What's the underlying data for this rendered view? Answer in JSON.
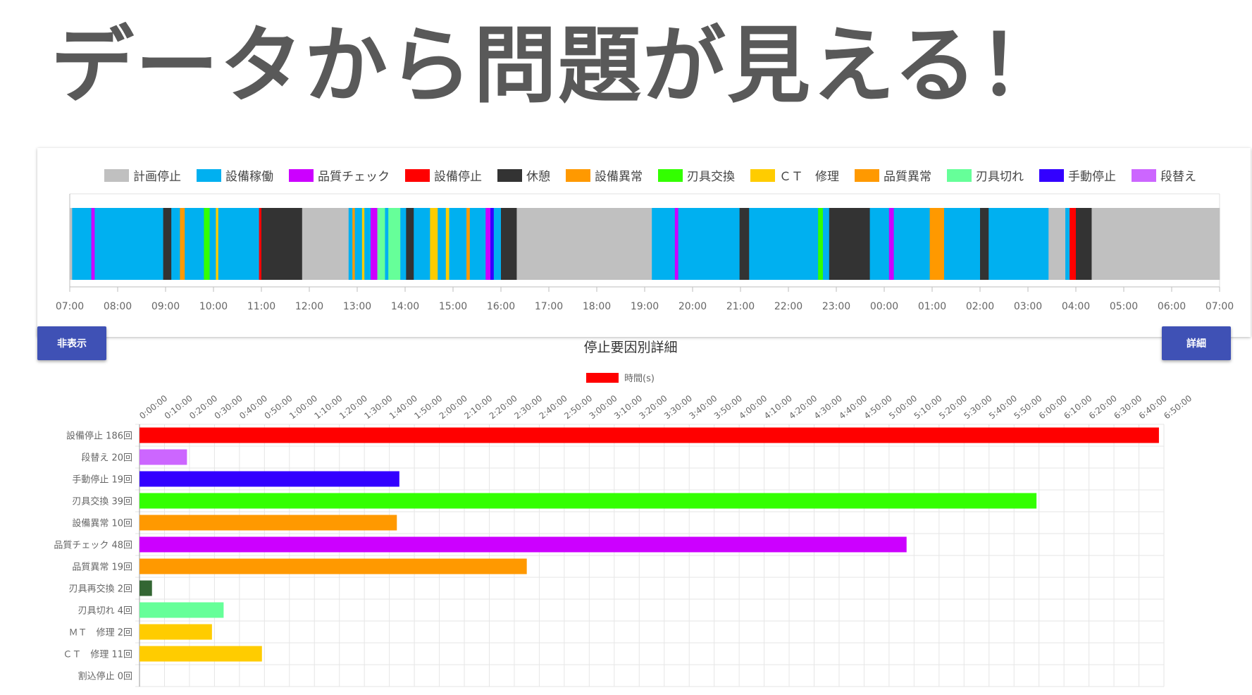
{
  "headline": "データから問題が見える！",
  "timeline": {
    "legend": [
      {
        "label": "計画停止",
        "color": "#c0c0c0"
      },
      {
        "label": "設備稼働",
        "color": "#00b0f0"
      },
      {
        "label": "品質チェック",
        "color": "#cc00ff"
      },
      {
        "label": "設備停止",
        "color": "#ff0000"
      },
      {
        "label": "休憩",
        "color": "#333333"
      },
      {
        "label": "設備異常",
        "color": "#ff9900"
      },
      {
        "label": "刃具交換",
        "color": "#33ff00"
      },
      {
        "label": "ＣＴ　修理",
        "color": "#ffcc00"
      },
      {
        "label": "品質異常",
        "color": "#ff9900"
      },
      {
        "label": "刃具切れ",
        "color": "#66ff99"
      },
      {
        "label": "手動停止",
        "color": "#3300ff"
      },
      {
        "label": "段替え",
        "color": "#cc66ff"
      }
    ],
    "ticks": [
      "07:00",
      "08:00",
      "09:00",
      "10:00",
      "11:00",
      "12:00",
      "13:00",
      "14:00",
      "15:00",
      "16:00",
      "17:00",
      "18:00",
      "19:00",
      "20:00",
      "21:00",
      "22:00",
      "23:00",
      "00:00",
      "01:00",
      "02:00",
      "03:00",
      "04:00",
      "05:00",
      "06:00",
      "07:00"
    ],
    "segments": [
      {
        "start": 0.0,
        "end": 0.05,
        "color": "#c0c0c0"
      },
      {
        "start": 0.05,
        "end": 0.45,
        "color": "#00b0f0"
      },
      {
        "start": 0.45,
        "end": 0.52,
        "color": "#cc00ff"
      },
      {
        "start": 0.52,
        "end": 1.95,
        "color": "#00b0f0"
      },
      {
        "start": 1.95,
        "end": 2.12,
        "color": "#333333"
      },
      {
        "start": 2.12,
        "end": 2.3,
        "color": "#00b0f0"
      },
      {
        "start": 2.3,
        "end": 2.4,
        "color": "#ff9900"
      },
      {
        "start": 2.4,
        "end": 2.8,
        "color": "#00b0f0"
      },
      {
        "start": 2.8,
        "end": 2.92,
        "color": "#33ff00"
      },
      {
        "start": 2.92,
        "end": 3.05,
        "color": "#00b0f0"
      },
      {
        "start": 3.05,
        "end": 3.1,
        "color": "#ffcc00"
      },
      {
        "start": 3.1,
        "end": 3.95,
        "color": "#00b0f0"
      },
      {
        "start": 3.95,
        "end": 4.0,
        "color": "#ff0000"
      },
      {
        "start": 4.0,
        "end": 4.85,
        "color": "#333333"
      },
      {
        "start": 4.85,
        "end": 5.82,
        "color": "#c0c0c0"
      },
      {
        "start": 5.82,
        "end": 5.9,
        "color": "#00b0f0"
      },
      {
        "start": 5.9,
        "end": 5.95,
        "color": "#ff9900"
      },
      {
        "start": 5.95,
        "end": 6.1,
        "color": "#00b0f0"
      },
      {
        "start": 6.1,
        "end": 6.15,
        "color": "#ffcc00"
      },
      {
        "start": 6.15,
        "end": 6.28,
        "color": "#00b0f0"
      },
      {
        "start": 6.28,
        "end": 6.42,
        "color": "#cc00ff"
      },
      {
        "start": 6.42,
        "end": 6.58,
        "color": "#66ff99"
      },
      {
        "start": 6.58,
        "end": 6.65,
        "color": "#00b0f0"
      },
      {
        "start": 6.65,
        "end": 6.9,
        "color": "#66ff99"
      },
      {
        "start": 6.9,
        "end": 7.02,
        "color": "#00b0f0"
      },
      {
        "start": 7.02,
        "end": 7.18,
        "color": "#333333"
      },
      {
        "start": 7.18,
        "end": 7.52,
        "color": "#00b0f0"
      },
      {
        "start": 7.52,
        "end": 7.68,
        "color": "#ffcc00"
      },
      {
        "start": 7.68,
        "end": 7.85,
        "color": "#00b0f0"
      },
      {
        "start": 7.85,
        "end": 7.92,
        "color": "#ffcc00"
      },
      {
        "start": 7.92,
        "end": 8.28,
        "color": "#00b0f0"
      },
      {
        "start": 8.28,
        "end": 8.35,
        "color": "#ff9900"
      },
      {
        "start": 8.35,
        "end": 8.68,
        "color": "#00b0f0"
      },
      {
        "start": 8.68,
        "end": 8.78,
        "color": "#cc00ff"
      },
      {
        "start": 8.78,
        "end": 8.85,
        "color": "#3300ff"
      },
      {
        "start": 8.85,
        "end": 9.0,
        "color": "#00b0f0"
      },
      {
        "start": 9.0,
        "end": 9.33,
        "color": "#333333"
      },
      {
        "start": 9.33,
        "end": 12.15,
        "color": "#c0c0c0"
      },
      {
        "start": 12.15,
        "end": 12.63,
        "color": "#00b0f0"
      },
      {
        "start": 12.63,
        "end": 12.7,
        "color": "#cc00ff"
      },
      {
        "start": 12.7,
        "end": 13.98,
        "color": "#00b0f0"
      },
      {
        "start": 13.98,
        "end": 14.18,
        "color": "#333333"
      },
      {
        "start": 14.18,
        "end": 15.62,
        "color": "#00b0f0"
      },
      {
        "start": 15.62,
        "end": 15.72,
        "color": "#33ff00"
      },
      {
        "start": 15.72,
        "end": 15.85,
        "color": "#00b0f0"
      },
      {
        "start": 15.85,
        "end": 16.7,
        "color": "#333333"
      },
      {
        "start": 16.7,
        "end": 17.1,
        "color": "#00b0f0"
      },
      {
        "start": 17.1,
        "end": 17.2,
        "color": "#cc00ff"
      },
      {
        "start": 17.2,
        "end": 17.95,
        "color": "#00b0f0"
      },
      {
        "start": 17.95,
        "end": 18.25,
        "color": "#ff9900"
      },
      {
        "start": 18.25,
        "end": 19.0,
        "color": "#00b0f0"
      },
      {
        "start": 19.0,
        "end": 19.18,
        "color": "#333333"
      },
      {
        "start": 19.18,
        "end": 20.43,
        "color": "#00b0f0"
      },
      {
        "start": 20.43,
        "end": 20.78,
        "color": "#c0c0c0"
      },
      {
        "start": 20.78,
        "end": 20.87,
        "color": "#00b0f0"
      },
      {
        "start": 20.87,
        "end": 21.0,
        "color": "#ff0000"
      },
      {
        "start": 21.0,
        "end": 21.33,
        "color": "#333333"
      },
      {
        "start": 21.33,
        "end": 24.0,
        "color": "#c0c0c0"
      }
    ]
  },
  "buttons": {
    "hide_label": "非表示",
    "detail_label": "詳細"
  },
  "chart_data": {
    "type": "bar",
    "orientation": "horizontal",
    "title": "停止要因別詳細",
    "series": [
      {
        "name": "時間(s)",
        "color": "#ff0000"
      }
    ],
    "x_ticks": [
      "0:00:00",
      "0:10:00",
      "0:20:00",
      "0:30:00",
      "0:40:00",
      "0:50:00",
      "1:00:00",
      "1:10:00",
      "1:20:00",
      "1:30:00",
      "1:40:00",
      "1:50:00",
      "2:00:00",
      "2:10:00",
      "2:20:00",
      "2:30:00",
      "2:40:00",
      "2:50:00",
      "3:00:00",
      "3:10:00",
      "3:20:00",
      "3:30:00",
      "3:40:00",
      "3:50:00",
      "4:00:00",
      "4:10:00",
      "4:20:00",
      "4:30:00",
      "4:40:00",
      "4:50:00",
      "5:00:00",
      "5:10:00",
      "5:20:00",
      "5:30:00",
      "5:40:00",
      "5:50:00",
      "6:00:00",
      "6:10:00",
      "6:20:00",
      "6:30:00",
      "6:40:00",
      "6:50:00"
    ],
    "xlim": [
      0,
      24600
    ],
    "categories": [
      "設備停止 186回",
      "段替え 20回",
      "手動停止 19回",
      "刃具交換 39回",
      "設備異常 10回",
      "品質チェック 48回",
      "品質異常 19回",
      "刃具再交換 2回",
      "刃具切れ 4回",
      "ＭＴ　修理 2回",
      "ＣＴ　修理 11回",
      "割込停止 0回"
    ],
    "values": [
      24480,
      1140,
      6240,
      21540,
      6180,
      18420,
      9300,
      300,
      2020,
      1740,
      2940,
      0
    ],
    "colors": [
      "#ff0000",
      "#cc66ff",
      "#3300ff",
      "#33ff00",
      "#ff9900",
      "#cc00ff",
      "#ff9900",
      "#336633",
      "#66ff99",
      "#ffcc00",
      "#ffcc00",
      "#999999"
    ]
  }
}
